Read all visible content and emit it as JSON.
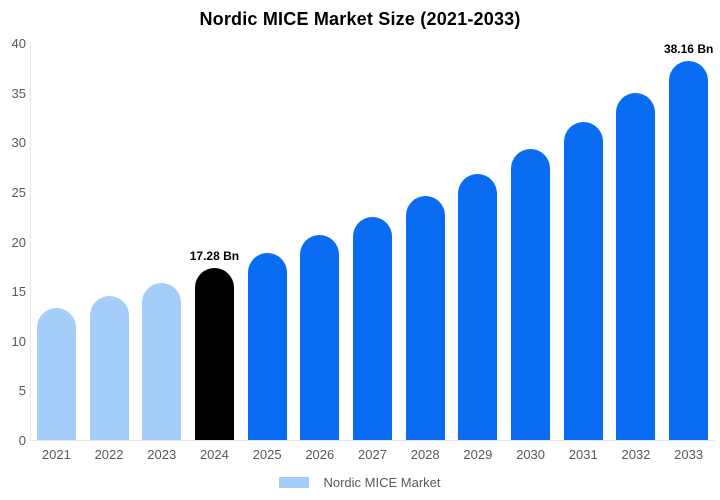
{
  "chart_data": {
    "type": "bar",
    "title": "Nordic MICE Market Size (2021-2033)",
    "xlabel": "",
    "ylabel": "",
    "unit": "Bn",
    "categories": [
      "2021",
      "2022",
      "2023",
      "2024",
      "2025",
      "2026",
      "2027",
      "2028",
      "2029",
      "2030",
      "2031",
      "2032",
      "2033"
    ],
    "values": [
      13.27,
      14.49,
      15.82,
      17.28,
      18.87,
      20.61,
      22.5,
      24.57,
      26.83,
      29.3,
      31.99,
      34.94,
      38.16
    ],
    "ylim": [
      0,
      40
    ],
    "y_ticks": [
      0,
      5,
      10,
      15,
      20,
      25,
      30,
      35,
      40
    ],
    "grid": false,
    "legend": {
      "position": "bottom",
      "items": [
        "Nordic MICE Market"
      ]
    },
    "point_labels": [
      {
        "index": 3,
        "text": "17.28 Bn"
      },
      {
        "index": 12,
        "text": "38.16 Bn"
      }
    ],
    "colors": {
      "historical": "#A5CDFA",
      "base_year": "#000000",
      "forecast": "#0A6CF2",
      "per_bar": [
        "#A5CDFA",
        "#A5CDFA",
        "#A5CDFA",
        "#000000",
        "#0A6CF2",
        "#0A6CF2",
        "#0A6CF2",
        "#0A6CF2",
        "#0A6CF2",
        "#0A6CF2",
        "#0A6CF2",
        "#0A6CF2",
        "#0A6CF2"
      ],
      "axis_line": "#E6E6E6",
      "label_text": "#595959",
      "title_text": "#000000"
    }
  }
}
